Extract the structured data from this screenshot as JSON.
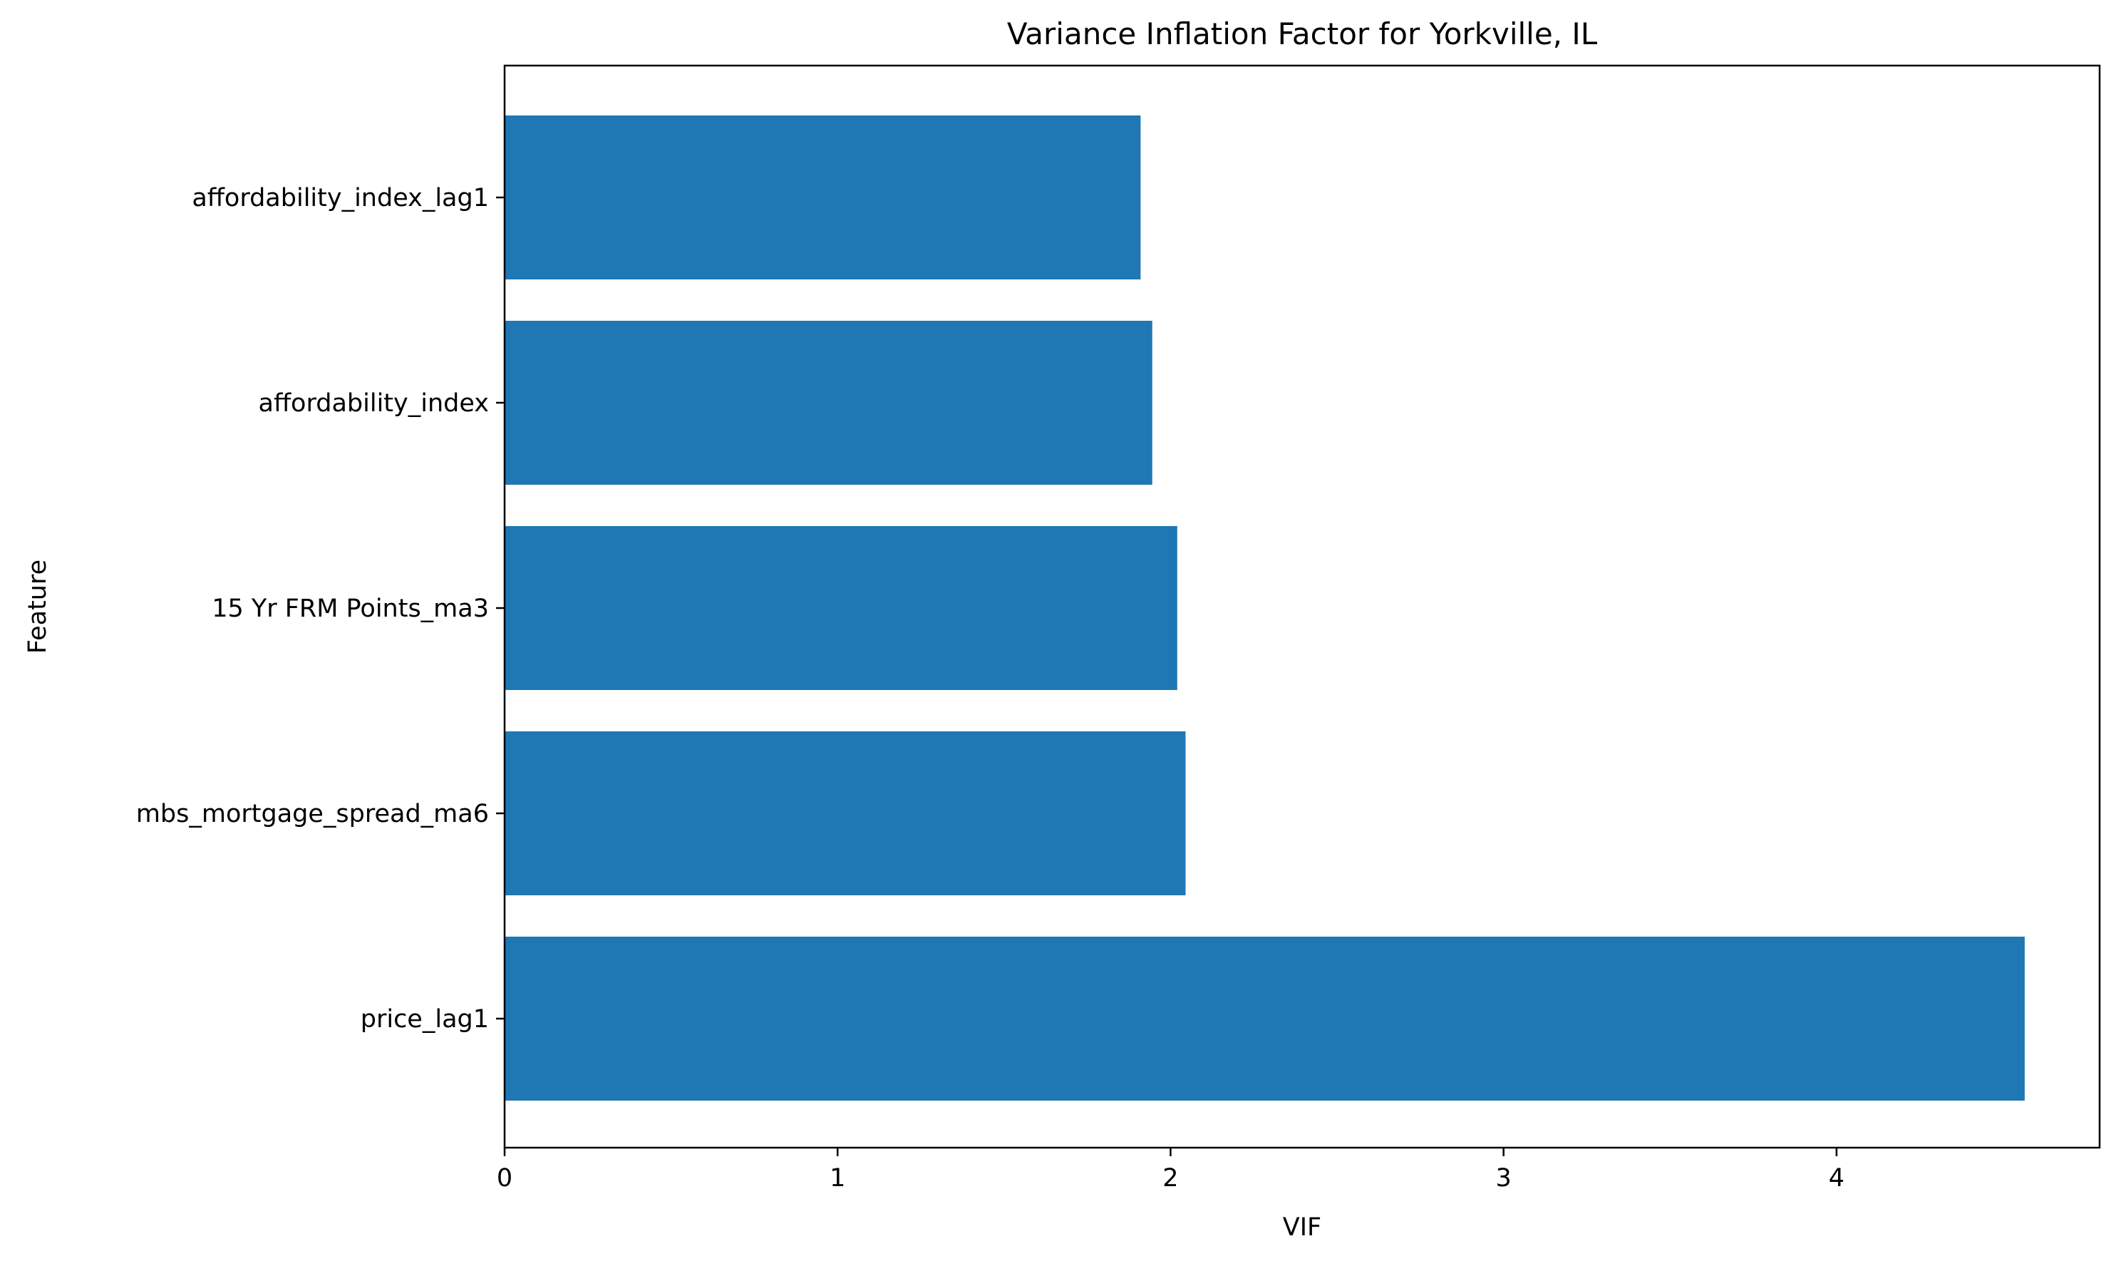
{
  "chart_data": {
    "type": "bar",
    "orientation": "horizontal",
    "title": "Variance Inflation Factor for Yorkville, IL",
    "xlabel": "VIF",
    "ylabel": "Feature",
    "categories": [
      "affordability_index_lag1",
      "affordability_index",
      "15 Yr FRM Points_ma3",
      "mbs_mortgage_spread_ma6",
      "price_lag1"
    ],
    "values": [
      1.91,
      1.945,
      2.02,
      2.045,
      4.565
    ],
    "xlim": [
      0,
      4.79
    ],
    "xticks": [
      0,
      1,
      2,
      3,
      4
    ],
    "grid": false,
    "bar_color": "#1f77b4"
  }
}
